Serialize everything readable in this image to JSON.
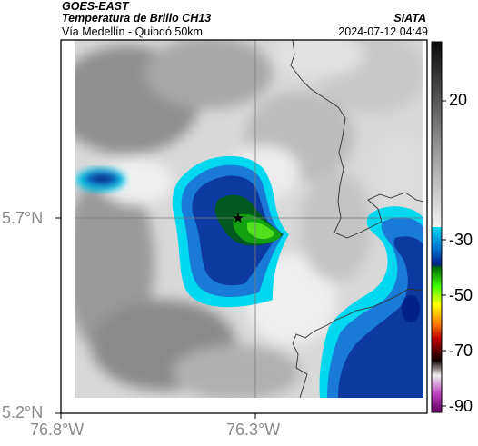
{
  "header": {
    "title_line1": "GOES-EAST",
    "title_line2": "Temperatura de Brillo CH13",
    "subtitle": "Vía Medellín - Quibdó 50km",
    "agency": "SIATA",
    "datetime": "2024-07-12 04:49"
  },
  "map": {
    "lat_ticks": [
      "5.7°N",
      "5.2°N"
    ],
    "lon_ticks": [
      "76.8°W",
      "76.3°W"
    ],
    "reference_point": "star-marker"
  },
  "colorbar": {
    "ticks": [
      "20",
      "-30",
      "-50",
      "-70",
      "-90"
    ],
    "stops": [
      {
        "value": 40,
        "color": "#0a0a0a"
      },
      {
        "value": 0,
        "color": "#e6e6e6"
      },
      {
        "value": -20,
        "color": "#f4f4f4"
      },
      {
        "value": -21,
        "color": "#00d8f0"
      },
      {
        "value": -30,
        "color": "#0070d0"
      },
      {
        "value": -36,
        "color": "#00208a"
      },
      {
        "value": -38,
        "color": "#008000"
      },
      {
        "value": -44,
        "color": "#40ff00"
      },
      {
        "value": -50,
        "color": "#ffff00"
      },
      {
        "value": -56,
        "color": "#ff8000"
      },
      {
        "value": -62,
        "color": "#c00000"
      },
      {
        "value": -70,
        "color": "#100000"
      },
      {
        "value": -76,
        "color": "#f0f0f0"
      },
      {
        "value": -84,
        "color": "#c040c0"
      },
      {
        "value": -95,
        "color": "#600060"
      }
    ]
  }
}
